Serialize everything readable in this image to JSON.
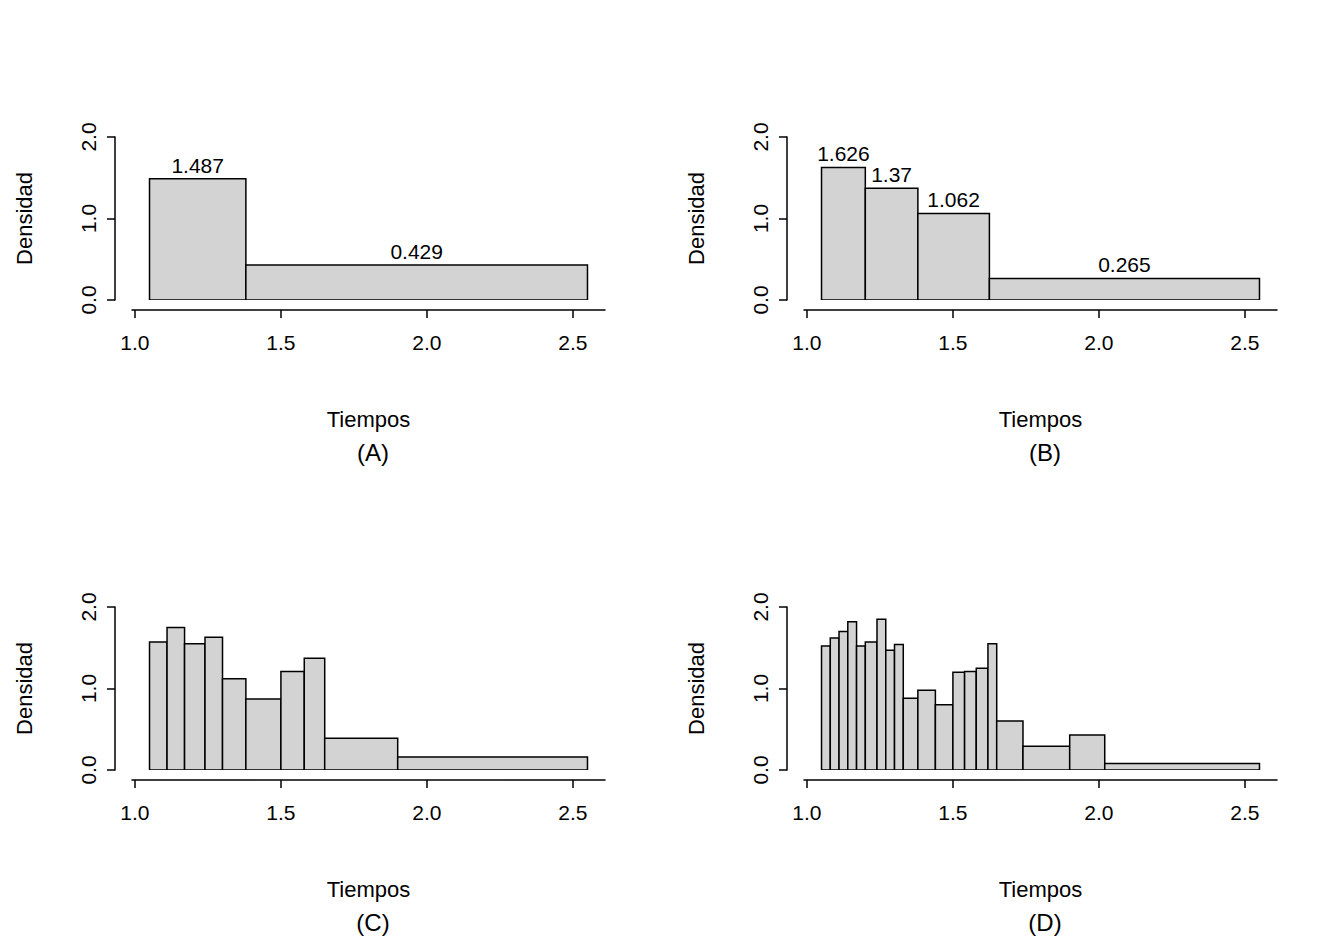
{
  "chart_data": [
    {
      "type": "histogram",
      "title": "(A)",
      "xlabel": "Tiempos",
      "ylabel": "Densidad",
      "color": "#d3d3d3",
      "bins": [
        1.05,
        1.38,
        2.55
      ],
      "values": [
        1.487,
        0.429
      ],
      "data_labels": true,
      "xlim": [
        0.99,
        2.61
      ],
      "ylim": [
        0,
        2.0
      ],
      "xticks": [
        {
          "value": 1.0,
          "label": "1.0"
        },
        {
          "value": 1.5,
          "label": "1.5"
        },
        {
          "value": 2.0,
          "label": "2.0"
        },
        {
          "value": 2.5,
          "label": "2.5"
        }
      ],
      "yticks": [
        {
          "value": 0,
          "label": "0.0"
        },
        {
          "value": 1,
          "label": "1.0"
        },
        {
          "value": 2,
          "label": "2.0"
        }
      ]
    },
    {
      "type": "histogram",
      "title": "(B)",
      "xlabel": "Tiempos",
      "ylabel": "Densidad",
      "color": "#d3d3d3",
      "bins": [
        1.05,
        1.2,
        1.38,
        1.625,
        2.55
      ],
      "values": [
        1.626,
        1.37,
        1.062,
        0.265
      ],
      "data_labels": true,
      "xlim": [
        0.99,
        2.61
      ],
      "ylim": [
        0,
        2.0
      ],
      "xticks": [
        {
          "value": 1.0,
          "label": "1.0"
        },
        {
          "value": 1.5,
          "label": "1.5"
        },
        {
          "value": 2.0,
          "label": "2.0"
        },
        {
          "value": 2.5,
          "label": "2.5"
        }
      ],
      "yticks": [
        {
          "value": 0,
          "label": "0.0"
        },
        {
          "value": 1,
          "label": "1.0"
        },
        {
          "value": 2,
          "label": "2.0"
        }
      ]
    },
    {
      "type": "histogram",
      "title": "(C)",
      "xlabel": "Tiempos",
      "ylabel": "Densidad",
      "color": "#d3d3d3",
      "bins": [
        1.05,
        1.11,
        1.17,
        1.24,
        1.3,
        1.38,
        1.5,
        1.58,
        1.65,
        1.9,
        2.55
      ],
      "values": [
        1.57,
        1.75,
        1.55,
        1.63,
        1.12,
        0.87,
        1.21,
        1.37,
        0.39,
        0.16
      ],
      "data_labels": false,
      "xlim": [
        0.99,
        2.61
      ],
      "ylim": [
        0,
        2.0
      ],
      "xticks": [
        {
          "value": 1.0,
          "label": "1.0"
        },
        {
          "value": 1.5,
          "label": "1.5"
        },
        {
          "value": 2.0,
          "label": "2.0"
        },
        {
          "value": 2.5,
          "label": "2.5"
        }
      ],
      "yticks": [
        {
          "value": 0,
          "label": "0.0"
        },
        {
          "value": 1,
          "label": "1.0"
        },
        {
          "value": 2,
          "label": "2.0"
        }
      ]
    },
    {
      "type": "histogram",
      "title": "(D)",
      "xlabel": "Tiempos",
      "ylabel": "Densidad",
      "color": "#d3d3d3",
      "bins": [
        1.05,
        1.08,
        1.11,
        1.14,
        1.17,
        1.2,
        1.24,
        1.27,
        1.3,
        1.33,
        1.38,
        1.44,
        1.5,
        1.54,
        1.58,
        1.62,
        1.65,
        1.74,
        1.9,
        2.02,
        2.55
      ],
      "values": [
        1.52,
        1.62,
        1.7,
        1.82,
        1.52,
        1.57,
        1.85,
        1.47,
        1.54,
        0.88,
        0.98,
        0.8,
        1.2,
        1.21,
        1.25,
        1.55,
        0.6,
        0.29,
        0.43,
        0.08
      ],
      "data_labels": false,
      "xlim": [
        0.99,
        2.61
      ],
      "ylim": [
        0,
        2.0
      ],
      "xticks": [
        {
          "value": 1.0,
          "label": "1.0"
        },
        {
          "value": 1.5,
          "label": "1.5"
        },
        {
          "value": 2.0,
          "label": "2.0"
        },
        {
          "value": 2.5,
          "label": "2.5"
        }
      ],
      "yticks": [
        {
          "value": 0,
          "label": "0.0"
        },
        {
          "value": 1,
          "label": "1.0"
        },
        {
          "value": 2,
          "label": "2.0"
        }
      ]
    }
  ]
}
